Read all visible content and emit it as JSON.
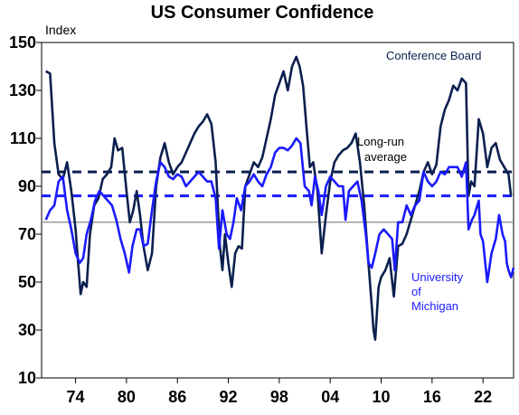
{
  "chart_data": {
    "type": "line",
    "title": "US Consumer Confidence",
    "ylabel": "Index",
    "xlabel": "",
    "ylim": [
      10,
      150
    ],
    "xlim": [
      1970.0,
      2025.6
    ],
    "yticks": [
      10,
      30,
      50,
      70,
      90,
      110,
      130,
      150
    ],
    "xtick_labels": [
      "74",
      "80",
      "86",
      "92",
      "98",
      "04",
      "10",
      "16",
      "22"
    ],
    "xtick_positions": [
      1974,
      1980,
      1986,
      1992,
      1998,
      2004,
      2010,
      2016,
      2022
    ],
    "reference_lines": [
      {
        "name": "conference-board-average",
        "value": 96,
        "color": "#0b1f4f",
        "style": "dashed"
      },
      {
        "name": "michigan-average",
        "value": 86,
        "color": "#1a1aff",
        "style": "dashed"
      },
      {
        "name": "baseline",
        "value": 75,
        "color": "#8a8a8a",
        "style": "solid"
      }
    ],
    "annotations": [
      {
        "name": "conference-board-label",
        "text": "Conference Board",
        "color": "#0b1f4f"
      },
      {
        "name": "long-run-label-1",
        "text": "Long-run",
        "color": "#000000"
      },
      {
        "name": "long-run-label-2",
        "text": "average",
        "color": "#000000"
      },
      {
        "name": "michigan-label-1",
        "text": "University",
        "color": "#1a1aff"
      },
      {
        "name": "michigan-label-2",
        "text": "of",
        "color": "#1a1aff"
      },
      {
        "name": "michigan-label-3",
        "text": "Michigan",
        "color": "#1a1aff"
      }
    ],
    "series": [
      {
        "name": "Conference Board",
        "color": "#0b1f4f",
        "points": [
          [
            1970.5,
            138
          ],
          [
            1971.0,
            137
          ],
          [
            1971.5,
            108
          ],
          [
            1972.0,
            95
          ],
          [
            1972.5,
            93
          ],
          [
            1973.0,
            100
          ],
          [
            1973.5,
            88
          ],
          [
            1974.0,
            72
          ],
          [
            1974.3,
            58
          ],
          [
            1974.6,
            45
          ],
          [
            1974.9,
            50
          ],
          [
            1975.3,
            48
          ],
          [
            1975.7,
            70
          ],
          [
            1976.2,
            82
          ],
          [
            1976.7,
            85
          ],
          [
            1977.2,
            93
          ],
          [
            1977.7,
            95
          ],
          [
            1978.2,
            98
          ],
          [
            1978.6,
            110
          ],
          [
            1979.0,
            105
          ],
          [
            1979.5,
            106
          ],
          [
            1980.0,
            88
          ],
          [
            1980.4,
            75
          ],
          [
            1980.8,
            80
          ],
          [
            1981.2,
            88
          ],
          [
            1981.6,
            78
          ],
          [
            1982.0,
            65
          ],
          [
            1982.5,
            55
          ],
          [
            1983.0,
            62
          ],
          [
            1983.5,
            90
          ],
          [
            1984.0,
            102
          ],
          [
            1984.5,
            108
          ],
          [
            1985.0,
            100
          ],
          [
            1985.5,
            95
          ],
          [
            1986.0,
            98
          ],
          [
            1986.5,
            100
          ],
          [
            1987.0,
            104
          ],
          [
            1987.5,
            108
          ],
          [
            1988.0,
            112
          ],
          [
            1988.5,
            115
          ],
          [
            1989.0,
            117
          ],
          [
            1989.5,
            120
          ],
          [
            1990.0,
            116
          ],
          [
            1990.5,
            100
          ],
          [
            1991.0,
            65
          ],
          [
            1991.3,
            55
          ],
          [
            1991.6,
            70
          ],
          [
            1992.0,
            58
          ],
          [
            1992.4,
            48
          ],
          [
            1992.8,
            62
          ],
          [
            1993.2,
            65
          ],
          [
            1993.6,
            64
          ],
          [
            1994.0,
            90
          ],
          [
            1994.5,
            95
          ],
          [
            1995.0,
            100
          ],
          [
            1995.5,
            98
          ],
          [
            1996.0,
            102
          ],
          [
            1996.5,
            110
          ],
          [
            1997.0,
            118
          ],
          [
            1997.5,
            128
          ],
          [
            1998.0,
            133
          ],
          [
            1998.5,
            138
          ],
          [
            1999.0,
            130
          ],
          [
            1999.5,
            140
          ],
          [
            2000.0,
            144
          ],
          [
            2000.4,
            140
          ],
          [
            2000.8,
            132
          ],
          [
            2001.2,
            115
          ],
          [
            2001.6,
            98
          ],
          [
            2002.0,
            100
          ],
          [
            2002.5,
            88
          ],
          [
            2003.0,
            62
          ],
          [
            2003.5,
            78
          ],
          [
            2004.0,
            92
          ],
          [
            2004.5,
            100
          ],
          [
            2005.0,
            103
          ],
          [
            2005.5,
            105
          ],
          [
            2006.0,
            106
          ],
          [
            2006.5,
            108
          ],
          [
            2007.0,
            112
          ],
          [
            2007.5,
            100
          ],
          [
            2008.0,
            82
          ],
          [
            2008.5,
            58
          ],
          [
            2008.9,
            40
          ],
          [
            2009.1,
            30
          ],
          [
            2009.3,
            26
          ],
          [
            2009.7,
            48
          ],
          [
            2010.0,
            52
          ],
          [
            2010.5,
            55
          ],
          [
            2011.0,
            60
          ],
          [
            2011.5,
            44
          ],
          [
            2012.0,
            65
          ],
          [
            2012.5,
            66
          ],
          [
            2013.0,
            70
          ],
          [
            2013.5,
            76
          ],
          [
            2014.0,
            82
          ],
          [
            2014.5,
            88
          ],
          [
            2015.0,
            96
          ],
          [
            2015.5,
            100
          ],
          [
            2016.0,
            95
          ],
          [
            2016.5,
            99
          ],
          [
            2017.0,
            115
          ],
          [
            2017.5,
            122
          ],
          [
            2018.0,
            126
          ],
          [
            2018.5,
            132
          ],
          [
            2019.0,
            130
          ],
          [
            2019.5,
            135
          ],
          [
            2020.0,
            133
          ],
          [
            2020.3,
            86
          ],
          [
            2020.6,
            92
          ],
          [
            2021.0,
            90
          ],
          [
            2021.5,
            118
          ],
          [
            2022.0,
            112
          ],
          [
            2022.5,
            98
          ],
          [
            2023.0,
            106
          ],
          [
            2023.5,
            108
          ],
          [
            2024.0,
            101
          ],
          [
            2024.5,
            98
          ],
          [
            2025.0,
            95
          ],
          [
            2025.3,
            86
          ]
        ]
      },
      {
        "name": "University of Michigan",
        "color": "#1a1aff",
        "points": [
          [
            1970.5,
            76
          ],
          [
            1971.0,
            80
          ],
          [
            1971.5,
            82
          ],
          [
            1972.0,
            92
          ],
          [
            1972.5,
            94
          ],
          [
            1973.0,
            80
          ],
          [
            1973.5,
            72
          ],
          [
            1974.0,
            62
          ],
          [
            1974.5,
            58
          ],
          [
            1974.9,
            60
          ],
          [
            1975.3,
            70
          ],
          [
            1975.8,
            76
          ],
          [
            1976.3,
            84
          ],
          [
            1976.8,
            88
          ],
          [
            1977.3,
            86
          ],
          [
            1977.8,
            84
          ],
          [
            1978.3,
            82
          ],
          [
            1978.8,
            76
          ],
          [
            1979.3,
            68
          ],
          [
            1979.8,
            62
          ],
          [
            1980.3,
            54
          ],
          [
            1980.7,
            65
          ],
          [
            1981.2,
            72
          ],
          [
            1981.6,
            72
          ],
          [
            1982.0,
            65
          ],
          [
            1982.5,
            66
          ],
          [
            1983.0,
            80
          ],
          [
            1983.5,
            92
          ],
          [
            1984.0,
            100
          ],
          [
            1984.5,
            98
          ],
          [
            1985.0,
            94
          ],
          [
            1985.5,
            93
          ],
          [
            1986.0,
            95
          ],
          [
            1986.5,
            94
          ],
          [
            1987.0,
            90
          ],
          [
            1987.5,
            92
          ],
          [
            1988.0,
            94
          ],
          [
            1988.5,
            96
          ],
          [
            1989.0,
            94
          ],
          [
            1989.5,
            92
          ],
          [
            1990.0,
            92
          ],
          [
            1990.5,
            85
          ],
          [
            1990.9,
            64
          ],
          [
            1991.3,
            80
          ],
          [
            1991.8,
            70
          ],
          [
            1992.2,
            68
          ],
          [
            1992.6,
            75
          ],
          [
            1993.0,
            85
          ],
          [
            1993.5,
            80
          ],
          [
            1994.0,
            90
          ],
          [
            1994.5,
            92
          ],
          [
            1995.0,
            95
          ],
          [
            1995.5,
            92
          ],
          [
            1996.0,
            90
          ],
          [
            1996.5,
            95
          ],
          [
            1997.0,
            98
          ],
          [
            1997.5,
            104
          ],
          [
            1998.0,
            106
          ],
          [
            1998.5,
            106
          ],
          [
            1999.0,
            105
          ],
          [
            1999.5,
            107
          ],
          [
            2000.0,
            110
          ],
          [
            2000.5,
            108
          ],
          [
            2001.0,
            90
          ],
          [
            2001.5,
            88
          ],
          [
            2001.8,
            82
          ],
          [
            2002.2,
            94
          ],
          [
            2002.6,
            88
          ],
          [
            2003.0,
            78
          ],
          [
            2003.5,
            90
          ],
          [
            2004.0,
            94
          ],
          [
            2004.5,
            92
          ],
          [
            2005.0,
            90
          ],
          [
            2005.5,
            90
          ],
          [
            2005.8,
            76
          ],
          [
            2006.2,
            88
          ],
          [
            2006.7,
            90
          ],
          [
            2007.2,
            92
          ],
          [
            2007.7,
            84
          ],
          [
            2008.2,
            70
          ],
          [
            2008.5,
            58
          ],
          [
            2008.9,
            56
          ],
          [
            2009.3,
            62
          ],
          [
            2009.8,
            70
          ],
          [
            2010.3,
            72
          ],
          [
            2010.8,
            70
          ],
          [
            2011.3,
            68
          ],
          [
            2011.6,
            55
          ],
          [
            2012.0,
            75
          ],
          [
            2012.5,
            75
          ],
          [
            2013.0,
            82
          ],
          [
            2013.5,
            78
          ],
          [
            2014.0,
            82
          ],
          [
            2014.5,
            84
          ],
          [
            2015.0,
            96
          ],
          [
            2015.5,
            92
          ],
          [
            2016.0,
            90
          ],
          [
            2016.5,
            92
          ],
          [
            2017.0,
            96
          ],
          [
            2017.5,
            95
          ],
          [
            2018.0,
            98
          ],
          [
            2018.5,
            98
          ],
          [
            2019.0,
            98
          ],
          [
            2019.5,
            94
          ],
          [
            2020.0,
            100
          ],
          [
            2020.3,
            72
          ],
          [
            2020.7,
            76
          ],
          [
            2021.0,
            78
          ],
          [
            2021.5,
            84
          ],
          [
            2021.7,
            70
          ],
          [
            2022.0,
            67
          ],
          [
            2022.5,
            50
          ],
          [
            2023.0,
            62
          ],
          [
            2023.5,
            68
          ],
          [
            2023.9,
            78
          ],
          [
            2024.3,
            70
          ],
          [
            2024.6,
            67
          ],
          [
            2024.8,
            58
          ],
          [
            2025.0,
            55
          ],
          [
            2025.3,
            52
          ],
          [
            2025.6,
            56
          ]
        ]
      }
    ]
  }
}
